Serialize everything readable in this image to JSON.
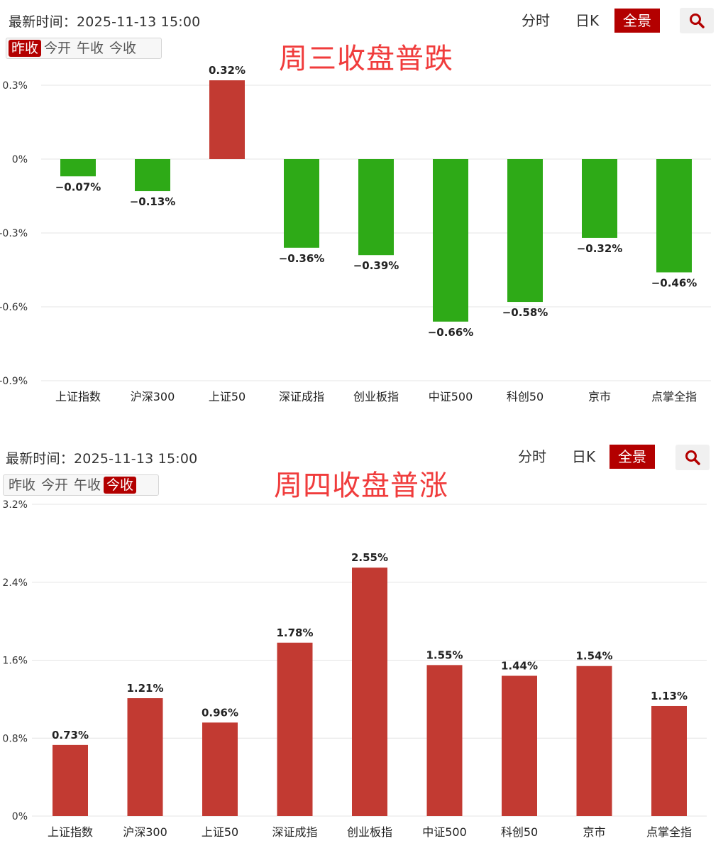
{
  "colors": {
    "up": "#c23a32",
    "down": "#2eaa17",
    "accent": "#b30000",
    "title": "#f03c3c"
  },
  "panels": [
    {
      "latest_time": "最新时间：2025-11-13 15:00",
      "segments": [
        "昨收",
        "今开",
        "午收",
        "今收"
      ],
      "active_segment": 0,
      "views": {
        "fenshi": "分时",
        "rik": "日K",
        "quanjing": "全景"
      },
      "headline": "周三收盘普跌"
    },
    {
      "latest_time": "最新时间：2025-11-13 15:00",
      "segments": [
        "昨收",
        "今开",
        "午收",
        "今收"
      ],
      "active_segment": 3,
      "views": {
        "fenshi": "分时",
        "rik": "日K",
        "quanjing": "全景"
      },
      "headline": "周四收盘普涨"
    }
  ],
  "chart_data": [
    {
      "type": "bar",
      "title": "周三收盘普跌",
      "categories": [
        "上证指数",
        "沪深300",
        "上证50",
        "深证成指",
        "创业板指",
        "中证500",
        "科创50",
        "京市",
        "点掌全指"
      ],
      "values": [
        -0.07,
        -0.13,
        0.32,
        -0.36,
        -0.39,
        -0.66,
        -0.58,
        -0.32,
        -0.46
      ],
      "labels": [
        "−0.07%",
        "−0.13%",
        "0.32%",
        "−0.36%",
        "−0.39%",
        "−0.66%",
        "−0.58%",
        "−0.32%",
        "−0.46%"
      ],
      "ylim": [
        -0.9,
        0.3
      ],
      "yticks": [
        0.3,
        0,
        -0.3,
        -0.6,
        -0.9
      ],
      "ytick_labels": [
        "0.3%",
        "0%",
        "-0.3%",
        "-0.6%",
        "-0.9%"
      ],
      "grid": true
    },
    {
      "type": "bar",
      "title": "周四收盘普涨",
      "categories": [
        "上证指数",
        "沪深300",
        "上证50",
        "深证成指",
        "创业板指",
        "中证500",
        "科创50",
        "京市",
        "点掌全指"
      ],
      "values": [
        0.73,
        1.21,
        0.96,
        1.78,
        2.55,
        1.55,
        1.44,
        1.54,
        1.13
      ],
      "labels": [
        "0.73%",
        "1.21%",
        "0.96%",
        "1.78%",
        "2.55%",
        "1.55%",
        "1.44%",
        "1.54%",
        "1.13%"
      ],
      "ylim": [
        0,
        3.2
      ],
      "yticks": [
        3.2,
        2.4,
        1.6,
        0.8,
        0
      ],
      "ytick_labels": [
        "3.2%",
        "2.4%",
        "1.6%",
        "0.8%",
        "0%"
      ],
      "grid": true
    }
  ]
}
